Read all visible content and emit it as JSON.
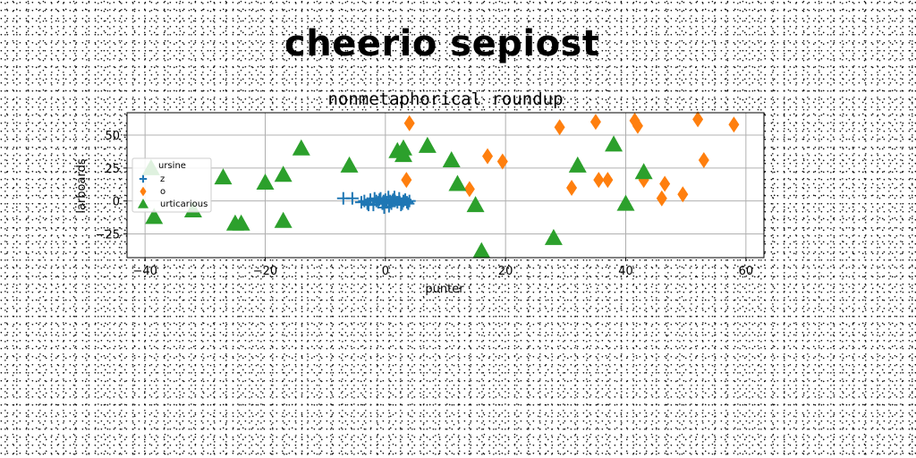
{
  "headline": "cheerio sepiost",
  "colors": {
    "z": "#1f77b4",
    "o": "#ff7f0e",
    "urticarious": "#2ca02c"
  },
  "chart_data": {
    "type": "scatter",
    "title": "nonmetaphorical roundup",
    "xlabel": "punter",
    "ylabel": "larboards",
    "xlim": [
      -43,
      63
    ],
    "ylim": [
      -43,
      67
    ],
    "xticks": [
      -40,
      -20,
      0,
      20,
      40,
      60
    ],
    "yticks": [
      -25,
      0,
      25,
      50
    ],
    "xtick_labels": [
      "−40",
      "−20",
      "0",
      "20",
      "40",
      "60"
    ],
    "ytick_labels": [
      "−25",
      "0",
      "25",
      "50"
    ],
    "grid": true,
    "legend": {
      "title": "ursine",
      "placement": "center-left"
    },
    "series": [
      {
        "name": "z",
        "marker": "plus",
        "x": [
          -7,
          -5.5,
          -4,
          -3.5,
          -3,
          -2.5,
          -2,
          -1.5,
          -1.2,
          -1,
          -0.8,
          -0.5,
          -0.3,
          0,
          0.2,
          0.5,
          0.8,
          1,
          1.3,
          1.6,
          2,
          2.3,
          2.6,
          3,
          3.3,
          3.6,
          4,
          -2.8,
          -1.8,
          0.6,
          1.5,
          2.8,
          -0.2,
          1.2,
          3.8
        ],
        "y": [
          2,
          2,
          -1,
          0,
          -2,
          1,
          -3,
          0,
          -1,
          1,
          2,
          -2,
          0,
          1,
          -1,
          3,
          0,
          -2,
          1,
          0,
          -1,
          2,
          -3,
          0,
          1,
          -1,
          0,
          -3,
          2,
          -4,
          3,
          -2,
          -5,
          0,
          -2
        ]
      },
      {
        "name": "o",
        "marker": "diamond",
        "x": [
          3.5,
          4,
          14,
          17,
          19.5,
          29,
          31,
          35,
          35.5,
          37,
          41.5,
          42,
          43,
          46,
          46.5,
          49.5,
          52,
          53,
          58
        ],
        "y": [
          16,
          59,
          9,
          34,
          30,
          56,
          10,
          60,
          16,
          16,
          61,
          57,
          16,
          2,
          13,
          5,
          62,
          31,
          58
        ]
      },
      {
        "name": "urticarious",
        "marker": "triangle",
        "x": [
          -39,
          -38.5,
          -32,
          -27,
          -25,
          -24,
          -20,
          -17,
          -17,
          -14,
          -6,
          2,
          3,
          3,
          7,
          11,
          12,
          15,
          16,
          28,
          32,
          38,
          40,
          43
        ],
        "y": [
          25,
          -12,
          -7,
          18,
          -17,
          -17,
          14,
          20,
          -15,
          40,
          27,
          38,
          40,
          35,
          42,
          31,
          13,
          -3,
          -38,
          -28,
          27,
          43,
          -2,
          22
        ]
      }
    ]
  }
}
